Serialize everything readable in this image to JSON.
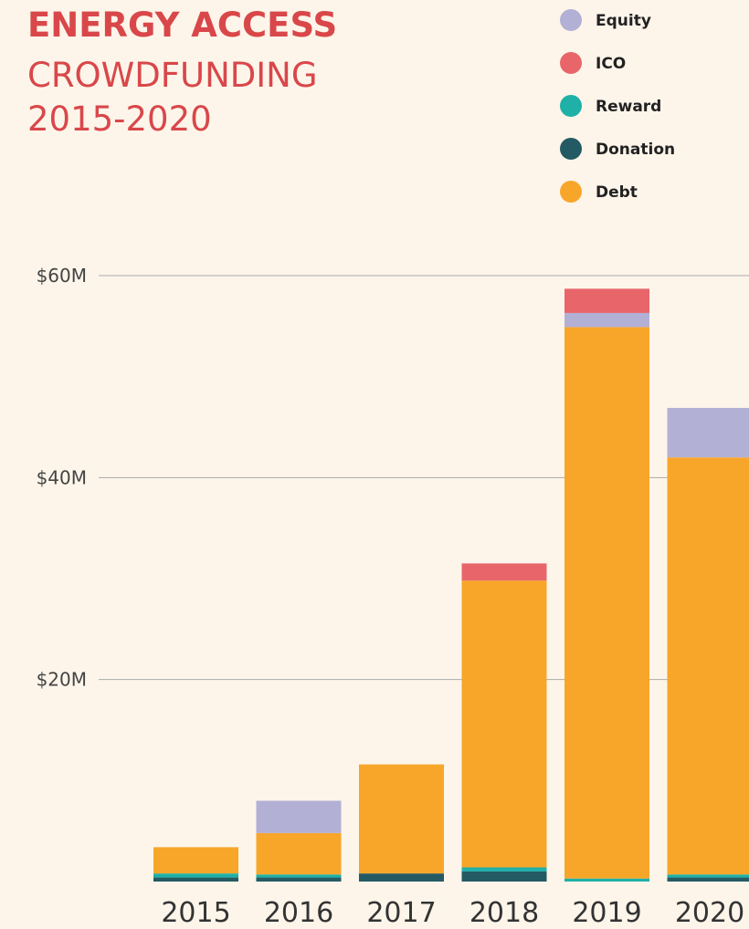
{
  "chart_data": {
    "type": "bar",
    "title": "ENERGY ACCESS",
    "subtitle": [
      "CROWDFUNDING",
      "2015-2020"
    ],
    "categories": [
      "2015",
      "2016",
      "2017",
      "2018",
      "2019",
      "2020"
    ],
    "series": [
      {
        "name": "Equity",
        "color": "#b3b0d6",
        "values": [
          0,
          3.2,
          0,
          0,
          1.4,
          4.9
        ]
      },
      {
        "name": "ICO",
        "color": "#e8666a",
        "values": [
          0,
          0,
          0,
          1.7,
          2.4,
          0
        ]
      },
      {
        "name": "Reward",
        "color": "#1fb0a8",
        "values": [
          0.4,
          0.3,
          0,
          0.4,
          0.3,
          0.3
        ]
      },
      {
        "name": "Donation",
        "color": "#245a63",
        "values": [
          0.4,
          0.4,
          0.8,
          1.0,
          0,
          0.4
        ]
      },
      {
        "name": "Debt",
        "color": "#f7a62a",
        "values": [
          2.6,
          4.1,
          10.8,
          28.4,
          54.6,
          41.3
        ]
      }
    ],
    "stacked": true,
    "ylim": [
      0,
      60
    ],
    "yticks": [
      {
        "value": 20,
        "label": "$20M"
      },
      {
        "value": 40,
        "label": "$40M"
      },
      {
        "value": 60,
        "label": "$60M"
      }
    ],
    "grid": true,
    "legend": "top-right"
  }
}
